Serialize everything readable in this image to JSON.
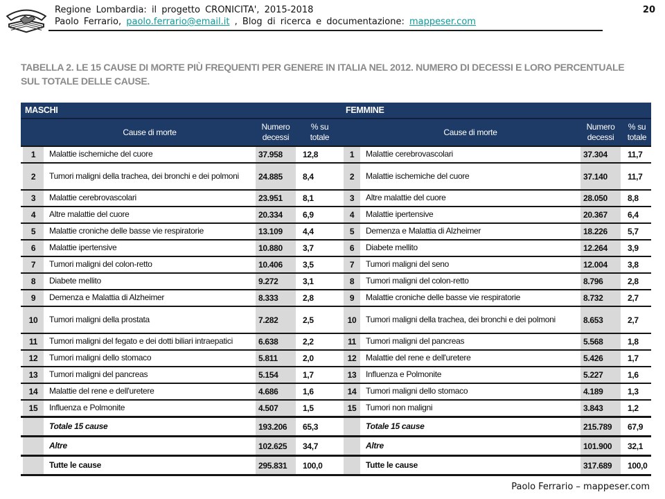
{
  "colors": {
    "header_navy": "#1e3a66",
    "cell_gray": "#d9d9d9",
    "link_teal": "#0b9b9b",
    "title_gray": "#8a8a8a"
  },
  "slide": {
    "header": {
      "line1": "Regione Lombardia: il progetto CRONICITA', 2015-2018",
      "line2_prefix": "Paolo Ferrario, ",
      "email_link": "paolo.ferrario@email.it",
      "line2_middle": " , Blog di ricerca e documentazione: ",
      "blog_link": "mappeser.com",
      "page_number": "20"
    },
    "title": "TABELLA 2. LE 15 CAUSE DI MORTE PIÙ FREQUENTI PER GENERE IN ITALIA NEL 2012. NUMERO DI DECESSI E LORO PERCENTUALE SUL TOTALE DELLE CAUSE.",
    "footer": "Paolo Ferrario – mappeser.com"
  },
  "table": {
    "groups": [
      {
        "label": "MASCHI"
      },
      {
        "label": "FEMMINE"
      }
    ],
    "columns": {
      "cause": "Cause di morte",
      "num": "Numero\ndecessi",
      "pct": "% su\ntotale"
    },
    "rows": [
      {
        "style": "",
        "m_rank": "1",
        "m_cause": "Malattie ischemiche del cuore",
        "m_num": "37.958",
        "m_pct": "12,8",
        "f_rank": "1",
        "f_cause": "Malattie cerebrovascolari",
        "f_num": "37.304",
        "f_pct": "11,7"
      },
      {
        "style": "row-tall",
        "m_rank": "2",
        "m_cause": "Tumori maligni della trachea, dei bronchi e dei polmoni",
        "m_num": "24.885",
        "m_pct": "8,4",
        "f_rank": "2",
        "f_cause": "Malattie ischemiche del cuore",
        "f_num": "37.140",
        "f_pct": "11,7"
      },
      {
        "style": "",
        "m_rank": "3",
        "m_cause": "Malattie cerebrovascolari",
        "m_num": "23.951",
        "m_pct": "8,1",
        "f_rank": "3",
        "f_cause": "Altre malattie del cuore",
        "f_num": "28.050",
        "f_pct": "8,8"
      },
      {
        "style": "",
        "m_rank": "4",
        "m_cause": "Altre malattie del cuore",
        "m_num": "20.334",
        "m_pct": "6,9",
        "f_rank": "4",
        "f_cause": "Malattie ipertensive",
        "f_num": "20.367",
        "f_pct": "6,4"
      },
      {
        "style": "",
        "m_rank": "5",
        "m_cause": "Malattie croniche delle basse vie respiratorie",
        "m_num": "13.109",
        "m_pct": "4,4",
        "f_rank": "5",
        "f_cause": "Demenza e Malattia di Alzheimer",
        "f_num": "18.226",
        "f_pct": "5,7"
      },
      {
        "style": "",
        "m_rank": "6",
        "m_cause": "Malattie ipertensive",
        "m_num": "10.880",
        "m_pct": "3,7",
        "f_rank": "6",
        "f_cause": "Diabete mellito",
        "f_num": "12.264",
        "f_pct": "3,9"
      },
      {
        "style": "",
        "m_rank": "7",
        "m_cause": "Tumori maligni del colon-retto",
        "m_num": "10.406",
        "m_pct": "3,5",
        "f_rank": "7",
        "f_cause": "Tumori maligni del seno",
        "f_num": "12.004",
        "f_pct": "3,8"
      },
      {
        "style": "",
        "m_rank": "8",
        "m_cause": "Diabete mellito",
        "m_num": "9.272",
        "m_pct": "3,1",
        "f_rank": "8",
        "f_cause": "Tumori maligni del colon-retto",
        "f_num": "8.796",
        "f_pct": "2,8"
      },
      {
        "style": "",
        "m_rank": "9",
        "m_cause": "Demenza e Malattia di Alzheimer",
        "m_num": "8.333",
        "m_pct": "2,8",
        "f_rank": "9",
        "f_cause": "Malattie croniche delle basse vie respiratorie",
        "f_num": "8.732",
        "f_pct": "2,7"
      },
      {
        "style": "row-tall",
        "m_rank": "10",
        "m_cause": "Tumori maligni della prostata",
        "m_num": "7.282",
        "m_pct": "2,5",
        "f_rank": "10",
        "f_cause": "Tumori maligni della trachea, dei bronchi e dei polmoni",
        "f_num": "8.653",
        "f_pct": "2,7"
      },
      {
        "style": "",
        "m_rank": "11",
        "m_cause": "Tumori maligni del fegato e dei dotti biliari intraepatici",
        "m_num": "6.638",
        "m_pct": "2,2",
        "f_rank": "11",
        "f_cause": "Tumori maligni del pancreas",
        "f_num": "5.568",
        "f_pct": "1,8"
      },
      {
        "style": "",
        "m_rank": "12",
        "m_cause": "Tumori maligni dello stomaco",
        "m_num": "5.811",
        "m_pct": "2,0",
        "f_rank": "12",
        "f_cause": "Malattie del rene e dell'uretere",
        "f_num": "5.426",
        "f_pct": "1,7"
      },
      {
        "style": "",
        "m_rank": "13",
        "m_cause": "Tumori maligni del pancreas",
        "m_num": "5.154",
        "m_pct": "1,7",
        "f_rank": "13",
        "f_cause": "Influenza e Polmonite",
        "f_num": "5.227",
        "f_pct": "1,6"
      },
      {
        "style": "",
        "m_rank": "14",
        "m_cause": "Malattie del rene e dell'uretere",
        "m_num": "4.686",
        "m_pct": "1,6",
        "f_rank": "14",
        "f_cause": "Tumori maligni dello stomaco",
        "f_num": "4.189",
        "f_pct": "1,3"
      },
      {
        "style": "",
        "m_rank": "15",
        "m_cause": "Influenza e Polmonite",
        "m_num": "4.507",
        "m_pct": "1,5",
        "f_rank": "15",
        "f_cause": "Tumori non maligni",
        "f_num": "3.843",
        "f_pct": "1,2"
      },
      {
        "style": "row-total row-italic",
        "m_rank": "",
        "m_cause": "Totale 15 cause",
        "m_num": "193.206",
        "m_pct": "65,3",
        "f_rank": "",
        "f_cause": "Totale 15 cause",
        "f_num": "215.789",
        "f_pct": "67,9"
      },
      {
        "style": "row-total row-italic",
        "m_rank": "",
        "m_cause": "Altre",
        "m_num": "102.625",
        "m_pct": "34,7",
        "f_rank": "",
        "f_cause": "Altre",
        "f_num": "101.900",
        "f_pct": "32,1"
      },
      {
        "style": "row-total",
        "m_rank": "",
        "m_cause": "Tutte le cause",
        "m_num": "295.831",
        "m_pct": "100,0",
        "f_rank": "",
        "f_cause": "Tutte le cause",
        "f_num": "317.689",
        "f_pct": "100,0"
      }
    ]
  }
}
